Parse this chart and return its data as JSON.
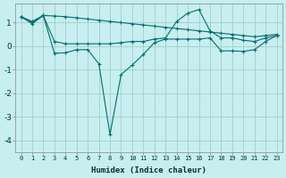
{
  "xlabel": "Humidex (Indice chaleur)",
  "background_color": "#c8eef0",
  "grid_color": "#a0cfc8",
  "line_color": "#007070",
  "ylim": [
    -4.5,
    1.8
  ],
  "xlim": [
    -0.5,
    23.5
  ],
  "series": [
    [
      1.25,
      1.05,
      1.3,
      1.28,
      1.25,
      1.2,
      1.15,
      1.1,
      1.05,
      1.0,
      0.95,
      0.9,
      0.85,
      0.8,
      0.75,
      0.7,
      0.65,
      0.6,
      0.55,
      0.5,
      0.45,
      0.4,
      0.45,
      0.5
    ],
    [
      1.25,
      1.0,
      1.3,
      0.2,
      0.1,
      0.1,
      0.1,
      0.1,
      0.1,
      0.15,
      0.2,
      0.2,
      0.3,
      0.35,
      1.05,
      1.4,
      1.55,
      0.65,
      0.35,
      0.35,
      0.25,
      0.2,
      0.35,
      0.45
    ],
    [
      1.25,
      0.95,
      1.3,
      -0.3,
      -0.28,
      -0.15,
      -0.15,
      -0.75,
      -3.75,
      -1.2,
      -0.8,
      -0.35,
      0.15,
      0.3,
      0.3,
      0.3,
      0.3,
      0.35,
      -0.2,
      -0.2,
      -0.22,
      -0.15,
      0.2,
      0.45
    ]
  ]
}
